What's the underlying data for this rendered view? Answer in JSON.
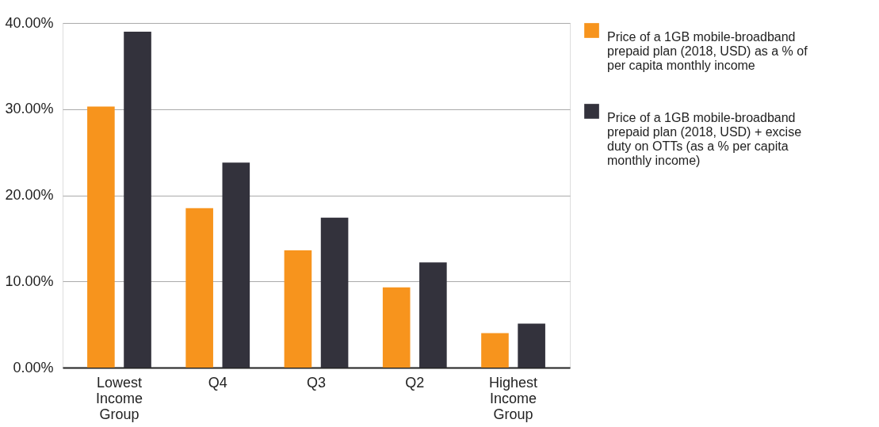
{
  "chart_data": {
    "type": "bar",
    "categories": [
      "Lowest Income Group",
      "Q4",
      "Q3",
      "Q2",
      "Highest Income Group"
    ],
    "series": [
      {
        "name": "Price of a 1GB mobile-broadband prepaid plan (2018, USD) as a % of per capita monthly income",
        "color": "#f7941d",
        "values": [
          30.3,
          18.5,
          13.6,
          9.3,
          4.0
        ]
      },
      {
        "name": "Price of a 1GB  mobile-broadband prepaid plan (2018, USD) + excise duty on OTTs (as a % per capita monthly income)",
        "color": "#33323c",
        "values": [
          39.0,
          23.8,
          17.4,
          12.2,
          5.1
        ]
      }
    ],
    "ylim": [
      0,
      40
    ],
    "yticks": [
      {
        "value": 0,
        "label": "0.00%"
      },
      {
        "value": 10,
        "label": "10.00%"
      },
      {
        "value": 20,
        "label": "20.00%"
      },
      {
        "value": 30,
        "label": "30.00%"
      },
      {
        "value": 40,
        "label": "40.00%"
      }
    ],
    "grid": "y",
    "legend": "top right"
  }
}
